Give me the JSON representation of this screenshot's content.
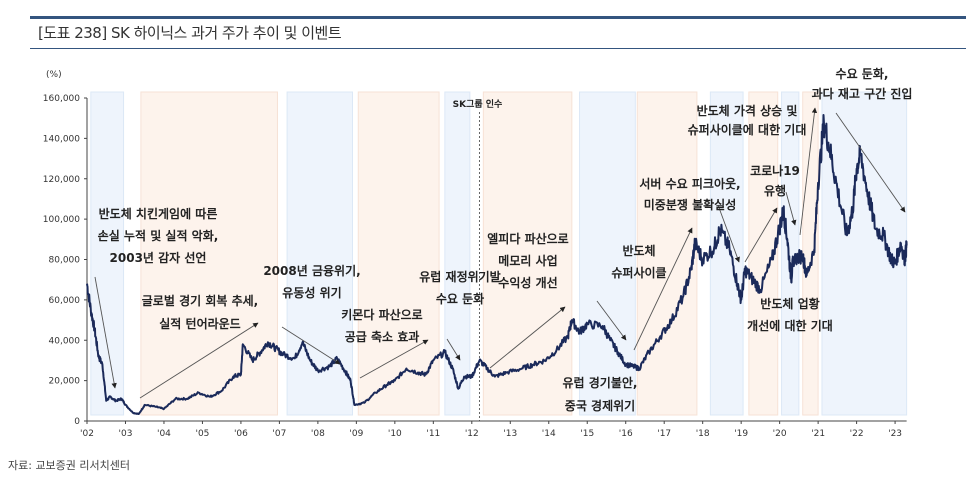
{
  "title": "[도표 238] SK 하이닉스 과거 주가 추이 및 이벤트",
  "source": "자료: 교보증권 리서치센터",
  "colors": {
    "line": "#1b2a5a",
    "blue_band": "#eef4fc",
    "orange_band": "#fdf3ec",
    "rule": "#34557f",
    "arrow": "#555555"
  },
  "chart_data": {
    "type": "line",
    "title": "SK 하이닉스 과거 주가 추이 및 이벤트",
    "ylabel": "(%)",
    "xlabel": "",
    "ylim": [
      0,
      160000
    ],
    "xlim": [
      2002.0,
      2023.3
    ],
    "yticks": [
      0,
      20000,
      40000,
      60000,
      80000,
      100000,
      120000,
      140000,
      160000
    ],
    "ytick_labels": [
      "0",
      "20,000",
      "40,000",
      "60,000",
      "80,000",
      "100,000",
      "120,000",
      "140,000",
      "160,000"
    ],
    "xticks": [
      2002,
      2003,
      2004,
      2005,
      2006,
      2007,
      2008,
      2009,
      2010,
      2011,
      2012,
      2013,
      2014,
      2015,
      2016,
      2017,
      2018,
      2019,
      2020,
      2021,
      2022,
      2023
    ],
    "xtick_labels": [
      "'02",
      "'03",
      "'04",
      "'05",
      "'06",
      "'07",
      "'08",
      "'09",
      "'10",
      "'11",
      "'12",
      "'13",
      "'14",
      "'15",
      "'16",
      "'17",
      "'18",
      "'19",
      "'20",
      "'21",
      "'22",
      "'23"
    ],
    "grid": false,
    "bands": [
      {
        "from": 2002.1,
        "to": 2002.95,
        "kind": "down"
      },
      {
        "from": 2003.4,
        "to": 2006.95,
        "kind": "up"
      },
      {
        "from": 2007.2,
        "to": 2008.9,
        "kind": "down"
      },
      {
        "from": 2009.05,
        "to": 2011.15,
        "kind": "up"
      },
      {
        "from": 2011.3,
        "to": 2011.95,
        "kind": "down"
      },
      {
        "from": 2012.3,
        "to": 2014.6,
        "kind": "up"
      },
      {
        "from": 2014.8,
        "to": 2016.25,
        "kind": "down"
      },
      {
        "from": 2016.3,
        "to": 2017.85,
        "kind": "up"
      },
      {
        "from": 2018.2,
        "to": 2019.05,
        "kind": "down"
      },
      {
        "from": 2019.2,
        "to": 2019.95,
        "kind": "up"
      },
      {
        "from": 2020.05,
        "to": 2020.5,
        "kind": "down"
      },
      {
        "from": 2020.6,
        "to": 2021.0,
        "kind": "up"
      },
      {
        "from": 2021.1,
        "to": 2023.3,
        "kind": "down"
      }
    ],
    "event_line": {
      "x": 2012.2,
      "label": "SK그룹 인수"
    },
    "series": [
      {
        "name": "SK하이닉스 주가",
        "x": [
          2002.0,
          2002.1,
          2002.2,
          2002.3,
          2002.4,
          2002.5,
          2002.6,
          2002.75,
          2002.9,
          2003.0,
          2003.2,
          2003.35,
          2003.5,
          2003.8,
          2004.0,
          2004.3,
          2004.6,
          2004.9,
          2005.2,
          2005.5,
          2005.8,
          2006.0,
          2006.05,
          2006.3,
          2006.5,
          2006.7,
          2006.9,
          2007.1,
          2007.4,
          2007.6,
          2007.8,
          2008.0,
          2008.3,
          2008.5,
          2008.7,
          2008.85,
          2008.95,
          2009.2,
          2009.5,
          2009.8,
          2010.0,
          2010.3,
          2010.6,
          2010.8,
          2011.0,
          2011.3,
          2011.5,
          2011.65,
          2011.8,
          2012.0,
          2012.2,
          2012.4,
          2012.6,
          2012.9,
          2013.3,
          2013.6,
          2013.9,
          2014.2,
          2014.5,
          2014.6,
          2014.8,
          2015.0,
          2015.4,
          2015.6,
          2015.8,
          2016.0,
          2016.2,
          2016.35,
          2016.6,
          2016.9,
          2017.2,
          2017.5,
          2017.7,
          2017.8,
          2018.0,
          2018.3,
          2018.45,
          2018.7,
          2018.9,
          2019.0,
          2019.1,
          2019.3,
          2019.5,
          2019.8,
          2020.0,
          2020.1,
          2020.2,
          2020.3,
          2020.35,
          2020.6,
          2020.7,
          2020.9,
          2021.0,
          2021.15,
          2021.3,
          2021.5,
          2021.75,
          2021.9,
          2022.0,
          2022.1,
          2022.3,
          2022.5,
          2022.7,
          2022.9,
          2023.0,
          2023.15,
          2023.25,
          2023.3
        ],
        "values": [
          68000,
          55000,
          45000,
          32000,
          28000,
          10000,
          12000,
          10000,
          11000,
          8000,
          4000,
          3500,
          8000,
          7000,
          6000,
          11000,
          11000,
          14000,
          12000,
          15000,
          22000,
          23000,
          38000,
          30000,
          34000,
          39000,
          36000,
          33000,
          31000,
          39000,
          30000,
          25000,
          27000,
          31000,
          25000,
          20000,
          8000,
          9000,
          14000,
          18000,
          20000,
          26000,
          24000,
          23000,
          30000,
          34000,
          26000,
          16000,
          22000,
          22000,
          30000,
          26000,
          22000,
          24000,
          26000,
          28000,
          30000,
          35000,
          42000,
          50000,
          44000,
          48000,
          47000,
          40000,
          34000,
          28000,
          27000,
          26000,
          34000,
          42000,
          50000,
          62000,
          75000,
          88000,
          80000,
          86000,
          95000,
          85000,
          68000,
          60000,
          75000,
          70000,
          65000,
          80000,
          96000,
          104000,
          90000,
          70000,
          80000,
          82000,
          72000,
          85000,
          118000,
          148000,
          135000,
          115000,
          92000,
          105000,
          125000,
          132000,
          112000,
          95000,
          92000,
          80000,
          78000,
          88000,
          80000,
          87000
        ]
      }
    ],
    "annotations": [
      {
        "lines": [
          "반도체 치킨게임에 따른",
          "손실 누적 및 실적 악화,",
          "2003년 감자 선언"
        ]
      },
      {
        "lines": [
          "글로벌 경기 회복 추세,",
          "실적 턴어라운드"
        ]
      },
      {
        "lines": [
          "2008년 금융위기,",
          "유동성 위기"
        ]
      },
      {
        "lines": [
          "키몬다 파산으로",
          "공급 축소 효과"
        ]
      },
      {
        "lines": [
          "유럽 재정위기발",
          "수요 둔화"
        ]
      },
      {
        "lines": [
          "엘피다 파산으로",
          "메모리 사업",
          "수익성 개선"
        ]
      },
      {
        "lines": [
          "반도체",
          "슈퍼사이클"
        ]
      },
      {
        "lines": [
          "유럽 경기불안,",
          "중국 경제위기"
        ]
      },
      {
        "lines": [
          "서버 수요 피크아웃,",
          "미중분쟁 불확실성"
        ]
      },
      {
        "lines": [
          "반도체 가격 상승 및",
          "슈퍼사이클에 대한 기대"
        ]
      },
      {
        "lines": [
          "코로나19",
          "유행"
        ]
      },
      {
        "lines": [
          "반도체 업황",
          "개선에 대한 기대"
        ]
      },
      {
        "lines": [
          "수요 둔화,",
          "과다 재고 구간 진입"
        ]
      }
    ]
  }
}
